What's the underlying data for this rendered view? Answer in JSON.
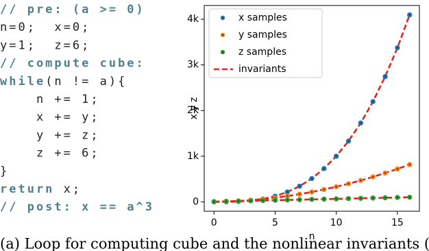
{
  "code": {
    "lines": [
      [
        {
          "text": "// pre: (a >= 0)",
          "bold": true
        }
      ],
      [
        {
          "text": "n=0;  x=0;",
          "bold": false
        }
      ],
      [
        {
          "text": "y=1;  z=6;",
          "bold": false
        }
      ],
      [
        {
          "text": "// compute cube:",
          "bold": true
        }
      ],
      [
        {
          "text": "while",
          "bold": true
        },
        {
          "text": "(n != a){",
          "bold": false
        }
      ],
      [
        {
          "text": "    n += 1;",
          "bold": false
        }
      ],
      [
        {
          "text": "    x += y;",
          "bold": false
        }
      ],
      [
        {
          "text": "    y += z;",
          "bold": false
        }
      ],
      [
        {
          "text": "    z += 6;",
          "bold": false
        }
      ],
      [
        {
          "text": "}",
          "bold": false
        }
      ],
      [
        {
          "text": "return",
          "bold": true
        },
        {
          "text": " x;",
          "bold": false
        }
      ],
      [
        {
          "text": "// post: x == a^3",
          "bold": true
        }
      ]
    ]
  },
  "chart_data": {
    "type": "scatter",
    "xlabel": "n",
    "ylabel": "x y z",
    "x": [
      0,
      1,
      2,
      3,
      4,
      5,
      6,
      7,
      8,
      9,
      10,
      11,
      12,
      13,
      14,
      15,
      16
    ],
    "series": [
      {
        "name": "x samples",
        "color": "#1f77b4",
        "values": [
          0,
          1,
          8,
          27,
          64,
          125,
          216,
          343,
          512,
          729,
          1000,
          1331,
          1728,
          2197,
          2744,
          3375,
          4096
        ]
      },
      {
        "name": "y samples",
        "color": "#ff7f0e",
        "values": [
          1,
          7,
          19,
          37,
          61,
          91,
          127,
          169,
          217,
          271,
          331,
          397,
          469,
          547,
          631,
          721,
          817
        ]
      },
      {
        "name": "z samples",
        "color": "#2ca02c",
        "values": [
          6,
          12,
          18,
          24,
          30,
          36,
          42,
          48,
          54,
          60,
          66,
          72,
          78,
          84,
          90,
          96,
          102
        ]
      }
    ],
    "invariants": {
      "name": "invariants",
      "color": "#e8221b",
      "curves": [
        [
          0,
          1,
          8,
          27,
          64,
          125,
          216,
          343,
          512,
          729,
          1000,
          1331,
          1728,
          2197,
          2744,
          3375,
          4096
        ],
        [
          1,
          7,
          19,
          37,
          61,
          91,
          127,
          169,
          217,
          271,
          331,
          397,
          469,
          547,
          631,
          721,
          817
        ],
        [
          6,
          12,
          18,
          24,
          30,
          36,
          42,
          48,
          54,
          60,
          66,
          72,
          78,
          84,
          90,
          96,
          102
        ]
      ]
    },
    "xlim": [
      -0.8,
      16.8
    ],
    "xticks": [
      0,
      5,
      10,
      15
    ],
    "ylim": [
      -205,
      4301
    ],
    "yticks": [
      0,
      {
        "value": 1000,
        "label": "1k"
      },
      {
        "value": 2000,
        "label": "2k"
      },
      {
        "value": 3000,
        "label": "3k"
      },
      {
        "value": 4000,
        "label": "4k"
      }
    ],
    "legend": "upper left"
  },
  "caption": "(a) Loop for computing cube and the nonlinear invariants ("
}
